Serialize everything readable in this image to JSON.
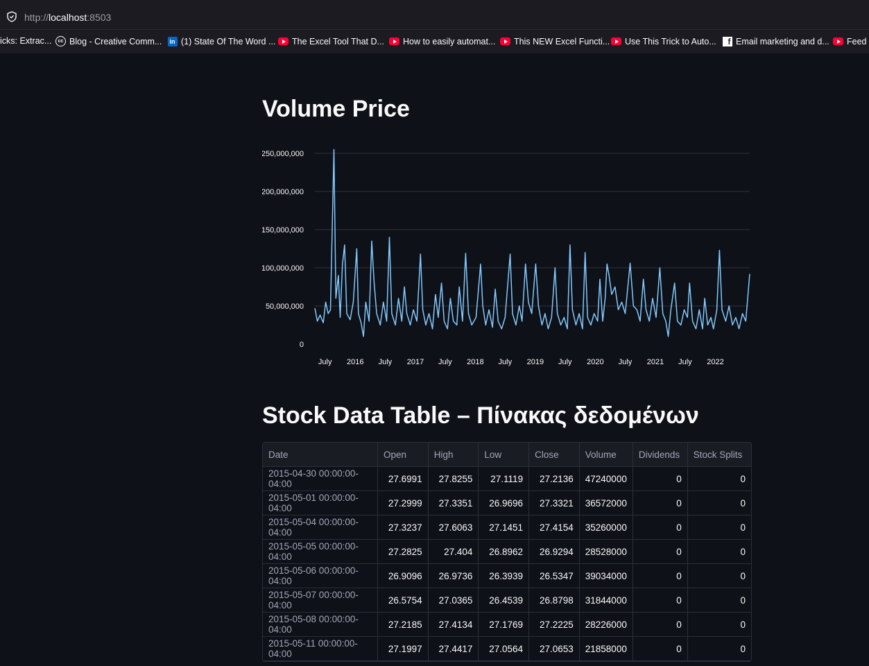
{
  "browser": {
    "url_prefix": "http://",
    "url_host": "localhost",
    "url_port": ":8503",
    "bookmarks": [
      {
        "label": "icks: Extrac...",
        "icon": "none"
      },
      {
        "label": "Blog - Creative Comm...",
        "icon": "creative-commons"
      },
      {
        "label": "(1) State Of The Word ...",
        "icon": "linkedin"
      },
      {
        "label": "The Excel Tool That D...",
        "icon": "youtube"
      },
      {
        "label": "How to easily automat...",
        "icon": "youtube"
      },
      {
        "label": "This NEW Excel Functi...",
        "icon": "youtube"
      },
      {
        "label": "Use This Trick to Auto...",
        "icon": "youtube"
      },
      {
        "label": "Email marketing and d...",
        "icon": "facebook"
      },
      {
        "label": "Feed Y",
        "icon": "youtube"
      }
    ]
  },
  "volume_section": {
    "title": "Volume Price"
  },
  "table_section": {
    "title": "Stock Data Table – Πίνακας δεδομένων"
  },
  "chart_data": {
    "type": "line",
    "title": "",
    "xlabel": "",
    "ylabel": "",
    "color": "#83c9ff",
    "grid": true,
    "ylim": [
      0,
      260000000
    ],
    "y_ticks": [
      {
        "value": 0,
        "label": "0"
      },
      {
        "value": 50000000,
        "label": "50,000,000"
      },
      {
        "value": 100000000,
        "label": "100,000,000"
      },
      {
        "value": 150000000,
        "label": "150,000,000"
      },
      {
        "value": 200000000,
        "label": "200,000,000"
      },
      {
        "value": 250000000,
        "label": "250,000,000"
      }
    ],
    "xlim": [
      "2015-04-30",
      "2022-07-29"
    ],
    "x_ticks": [
      {
        "date": "2015-07-01",
        "label": "July"
      },
      {
        "date": "2016-01-01",
        "label": "2016"
      },
      {
        "date": "2016-07-01",
        "label": "July"
      },
      {
        "date": "2017-01-01",
        "label": "2017"
      },
      {
        "date": "2017-07-01",
        "label": "July"
      },
      {
        "date": "2018-01-01",
        "label": "2018"
      },
      {
        "date": "2018-07-01",
        "label": "July"
      },
      {
        "date": "2019-01-01",
        "label": "2019"
      },
      {
        "date": "2019-07-01",
        "label": "July"
      },
      {
        "date": "2020-01-01",
        "label": "2020"
      },
      {
        "date": "2020-07-01",
        "label": "July"
      },
      {
        "date": "2021-01-01",
        "label": "2021"
      },
      {
        "date": "2021-07-01",
        "label": "July"
      },
      {
        "date": "2022-01-01",
        "label": "2022"
      }
    ],
    "series": [
      {
        "values": [
          [
            "2015-04-30",
            47000000
          ],
          [
            "2015-05-15",
            30000000
          ],
          [
            "2015-06-01",
            38000000
          ],
          [
            "2015-06-20",
            28000000
          ],
          [
            "2015-07-05",
            55000000
          ],
          [
            "2015-07-20",
            40000000
          ],
          [
            "2015-08-03",
            45000000
          ],
          [
            "2015-08-24",
            255000000
          ],
          [
            "2015-09-05",
            60000000
          ],
          [
            "2015-09-20",
            90000000
          ],
          [
            "2015-10-01",
            35000000
          ],
          [
            "2015-10-15",
            105000000
          ],
          [
            "2015-10-28",
            130000000
          ],
          [
            "2015-11-10",
            40000000
          ],
          [
            "2015-12-01",
            32000000
          ],
          [
            "2015-12-20",
            55000000
          ],
          [
            "2016-01-10",
            125000000
          ],
          [
            "2016-01-20",
            40000000
          ],
          [
            "2016-02-05",
            28000000
          ],
          [
            "2016-02-20",
            10000000
          ],
          [
            "2016-03-05",
            55000000
          ],
          [
            "2016-03-25",
            30000000
          ],
          [
            "2016-04-10",
            135000000
          ],
          [
            "2016-04-25",
            80000000
          ],
          [
            "2016-05-10",
            40000000
          ],
          [
            "2016-06-01",
            25000000
          ],
          [
            "2016-06-20",
            55000000
          ],
          [
            "2016-07-10",
            30000000
          ],
          [
            "2016-07-27",
            140000000
          ],
          [
            "2016-08-10",
            40000000
          ],
          [
            "2016-09-01",
            25000000
          ],
          [
            "2016-09-20",
            60000000
          ],
          [
            "2016-10-10",
            30000000
          ],
          [
            "2016-10-26",
            75000000
          ],
          [
            "2016-11-10",
            40000000
          ],
          [
            "2016-12-01",
            25000000
          ],
          [
            "2016-12-20",
            45000000
          ],
          [
            "2017-01-10",
            30000000
          ],
          [
            "2017-02-01",
            118000000
          ],
          [
            "2017-02-15",
            45000000
          ],
          [
            "2017-03-05",
            25000000
          ],
          [
            "2017-03-25",
            40000000
          ],
          [
            "2017-04-15",
            20000000
          ],
          [
            "2017-05-03",
            65000000
          ],
          [
            "2017-05-20",
            35000000
          ],
          [
            "2017-06-09",
            80000000
          ],
          [
            "2017-06-25",
            30000000
          ],
          [
            "2017-07-15",
            20000000
          ],
          [
            "2017-08-02",
            60000000
          ],
          [
            "2017-08-20",
            30000000
          ],
          [
            "2017-09-10",
            25000000
          ],
          [
            "2017-09-25",
            75000000
          ],
          [
            "2017-10-15",
            30000000
          ],
          [
            "2017-11-03",
            119000000
          ],
          [
            "2017-11-20",
            40000000
          ],
          [
            "2017-12-10",
            25000000
          ],
          [
            "2018-01-05",
            35000000
          ],
          [
            "2018-02-02",
            105000000
          ],
          [
            "2018-02-15",
            50000000
          ],
          [
            "2018-03-05",
            25000000
          ],
          [
            "2018-03-25",
            45000000
          ],
          [
            "2018-04-15",
            22000000
          ],
          [
            "2018-05-02",
            72000000
          ],
          [
            "2018-05-20",
            30000000
          ],
          [
            "2018-06-10",
            20000000
          ],
          [
            "2018-07-01",
            35000000
          ],
          [
            "2018-08-01",
            118000000
          ],
          [
            "2018-08-15",
            40000000
          ],
          [
            "2018-09-05",
            25000000
          ],
          [
            "2018-09-25",
            50000000
          ],
          [
            "2018-10-12",
            30000000
          ],
          [
            "2018-11-02",
            105000000
          ],
          [
            "2018-11-20",
            55000000
          ],
          [
            "2018-12-10",
            40000000
          ],
          [
            "2019-01-03",
            105000000
          ],
          [
            "2019-01-20",
            50000000
          ],
          [
            "2019-02-10",
            25000000
          ],
          [
            "2019-03-01",
            40000000
          ],
          [
            "2019-03-20",
            20000000
          ],
          [
            "2019-04-10",
            35000000
          ],
          [
            "2019-05-01",
            100000000
          ],
          [
            "2019-05-15",
            40000000
          ],
          [
            "2019-06-05",
            25000000
          ],
          [
            "2019-06-25",
            35000000
          ],
          [
            "2019-07-15",
            20000000
          ],
          [
            "2019-07-31",
            130000000
          ],
          [
            "2019-08-15",
            45000000
          ],
          [
            "2019-09-05",
            25000000
          ],
          [
            "2019-09-25",
            40000000
          ],
          [
            "2019-10-15",
            20000000
          ],
          [
            "2019-10-31",
            120000000
          ],
          [
            "2019-11-15",
            35000000
          ],
          [
            "2019-12-05",
            25000000
          ],
          [
            "2019-12-25",
            40000000
          ],
          [
            "2020-01-15",
            30000000
          ],
          [
            "2020-01-29",
            85000000
          ],
          [
            "2020-02-15",
            30000000
          ],
          [
            "2020-03-01",
            60000000
          ],
          [
            "2020-03-12",
            105000000
          ],
          [
            "2020-03-25",
            90000000
          ],
          [
            "2020-04-10",
            65000000
          ],
          [
            "2020-04-30",
            75000000
          ],
          [
            "2020-05-20",
            45000000
          ],
          [
            "2020-06-10",
            55000000
          ],
          [
            "2020-07-01",
            40000000
          ],
          [
            "2020-07-31",
            106000000
          ],
          [
            "2020-08-20",
            50000000
          ],
          [
            "2020-09-10",
            45000000
          ],
          [
            "2020-09-30",
            30000000
          ],
          [
            "2020-10-20",
            85000000
          ],
          [
            "2020-11-05",
            45000000
          ],
          [
            "2020-11-25",
            30000000
          ],
          [
            "2020-12-15",
            60000000
          ],
          [
            "2021-01-05",
            35000000
          ],
          [
            "2021-01-28",
            100000000
          ],
          [
            "2021-02-15",
            40000000
          ],
          [
            "2021-03-05",
            30000000
          ],
          [
            "2021-03-20",
            10000000
          ],
          [
            "2021-04-05",
            45000000
          ],
          [
            "2021-04-28",
            80000000
          ],
          [
            "2021-05-15",
            30000000
          ],
          [
            "2021-06-05",
            25000000
          ],
          [
            "2021-06-25",
            45000000
          ],
          [
            "2021-07-15",
            35000000
          ],
          [
            "2021-07-28",
            80000000
          ],
          [
            "2021-08-15",
            30000000
          ],
          [
            "2021-09-05",
            20000000
          ],
          [
            "2021-09-25",
            45000000
          ],
          [
            "2021-10-15",
            20000000
          ],
          [
            "2021-10-28",
            60000000
          ],
          [
            "2021-11-15",
            25000000
          ],
          [
            "2021-12-05",
            35000000
          ],
          [
            "2021-12-20",
            20000000
          ],
          [
            "2022-01-10",
            45000000
          ],
          [
            "2022-01-26",
            123000000
          ],
          [
            "2022-02-10",
            45000000
          ],
          [
            "2022-03-05",
            30000000
          ],
          [
            "2022-03-25",
            50000000
          ],
          [
            "2022-04-15",
            25000000
          ],
          [
            "2022-05-05",
            35000000
          ],
          [
            "2022-05-25",
            20000000
          ],
          [
            "2022-06-15",
            40000000
          ],
          [
            "2022-07-05",
            30000000
          ],
          [
            "2022-07-29",
            92000000
          ]
        ]
      }
    ]
  },
  "table": {
    "columns": [
      "Date",
      "Open",
      "High",
      "Low",
      "Close",
      "Volume",
      "Dividends",
      "Stock Splits"
    ],
    "rows": [
      [
        "2015-04-30 00:00:00-04:00",
        "27.6991",
        "27.8255",
        "27.1119",
        "27.2136",
        "47240000",
        "0",
        "0"
      ],
      [
        "2015-05-01 00:00:00-04:00",
        "27.2999",
        "27.3351",
        "26.9696",
        "27.3321",
        "36572000",
        "0",
        "0"
      ],
      [
        "2015-05-04 00:00:00-04:00",
        "27.3237",
        "27.6063",
        "27.1451",
        "27.4154",
        "35260000",
        "0",
        "0"
      ],
      [
        "2015-05-05 00:00:00-04:00",
        "27.2825",
        "27.404",
        "26.8962",
        "26.9294",
        "28528000",
        "0",
        "0"
      ],
      [
        "2015-05-06 00:00:00-04:00",
        "26.9096",
        "26.9736",
        "26.3939",
        "26.5347",
        "39034000",
        "0",
        "0"
      ],
      [
        "2015-05-07 00:00:00-04:00",
        "26.5754",
        "27.0365",
        "26.4539",
        "26.8798",
        "31844000",
        "0",
        "0"
      ],
      [
        "2015-05-08 00:00:00-04:00",
        "27.2185",
        "27.4134",
        "27.1769",
        "27.2225",
        "28226000",
        "0",
        "0"
      ],
      [
        "2015-05-11 00:00:00-04:00",
        "27.1997",
        "27.4417",
        "27.0564",
        "27.0653",
        "21858000",
        "0",
        "0"
      ]
    ]
  }
}
